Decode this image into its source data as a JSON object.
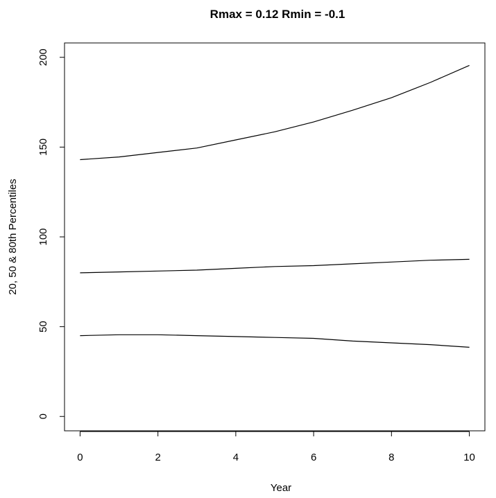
{
  "chart_data": {
    "type": "line",
    "title": "Rmax = 0.12 Rmin = -0.1",
    "xlabel": "Year",
    "ylabel": "20, 50 & 80th Percentiles",
    "xlim": [
      -0.4,
      10.4
    ],
    "ylim": [
      -8,
      208
    ],
    "x_ticks": [
      0,
      2,
      4,
      6,
      8,
      10
    ],
    "y_ticks": [
      0,
      50,
      100,
      150,
      200
    ],
    "x_tick_labels": [
      "0",
      "2",
      "4",
      "6",
      "8",
      "10"
    ],
    "y_tick_labels": [
      "0",
      "50",
      "100",
      "150",
      "200"
    ],
    "x": [
      0,
      1,
      2,
      3,
      4,
      5,
      6,
      7,
      8,
      9,
      10
    ],
    "series": [
      {
        "values": [
          143,
          144.5,
          147,
          149.5,
          154,
          158.5,
          164,
          170.5,
          177.5,
          186,
          195.5
        ]
      },
      {
        "values": [
          80,
          80.5,
          81,
          81.5,
          82.5,
          83.5,
          84,
          85,
          86,
          87,
          87.5
        ]
      },
      {
        "values": [
          45,
          45.5,
          45.5,
          45,
          44.5,
          44,
          43.5,
          42,
          41,
          40,
          38.5
        ]
      }
    ],
    "line_color": "#000000",
    "grid": false,
    "legend": "none"
  }
}
